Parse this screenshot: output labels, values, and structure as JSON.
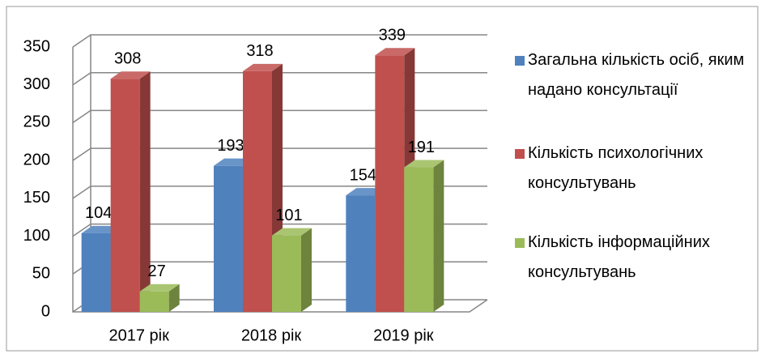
{
  "chart_data": {
    "type": "bar3d",
    "categories": [
      "2017 рік",
      "2018 рік",
      "2019 рік"
    ],
    "series": [
      {
        "name": "Загальна кількість осіб, яким надано консультації",
        "color": "#4f81bd",
        "values": [
          104,
          193,
          154
        ]
      },
      {
        "name": "Кількість психологічних консультувань",
        "color": "#c0504d",
        "values": [
          308,
          318,
          339
        ]
      },
      {
        "name": "Кількість інформаційних консультувань",
        "color": "#9bbb59",
        "values": [
          27,
          101,
          191
        ]
      }
    ],
    "ylim": [
      0,
      350
    ],
    "yticks": [
      0,
      50,
      100,
      150,
      200,
      250,
      300,
      350
    ],
    "grid": true,
    "legend": "right"
  }
}
